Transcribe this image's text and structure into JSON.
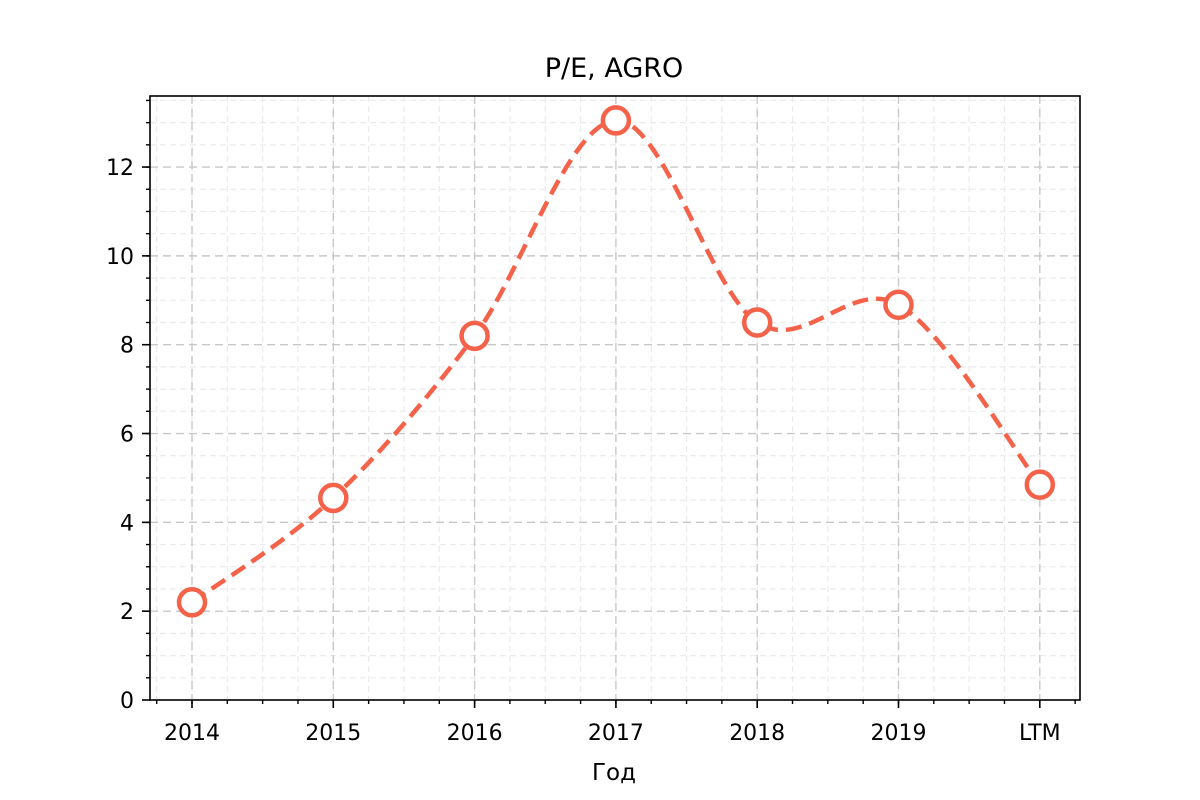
{
  "chart_data": {
    "type": "line",
    "title": "P/E, AGRO",
    "xlabel": "Год",
    "ylabel": "",
    "categories": [
      "2014",
      "2015",
      "2016",
      "2017",
      "2018",
      "2019",
      "LTM"
    ],
    "series": [
      {
        "values": [
          2.2,
          4.55,
          8.2,
          13.05,
          8.5,
          8.9,
          4.85
        ]
      }
    ],
    "ylim": [
      0,
      13.6
    ],
    "yticks": [
      0,
      2,
      4,
      6,
      8,
      10,
      12
    ],
    "y_tick_labels": [
      "0",
      "2",
      "4",
      "6",
      "8",
      "10",
      "12"
    ],
    "line_style": "dashed",
    "smooth": true,
    "marker": "hollow-circle",
    "grid": true,
    "minor_grid": true,
    "legend": "none"
  },
  "colors": {
    "series": "#f4624a",
    "major_grid": "#c8c8c8",
    "minor_grid": "#ebebeb",
    "axis": "#000000"
  }
}
